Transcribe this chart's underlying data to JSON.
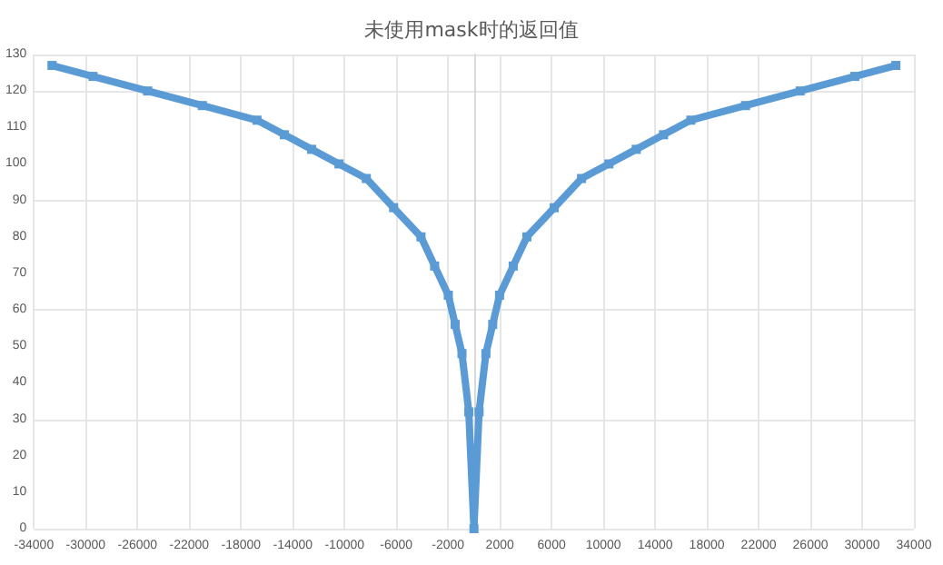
{
  "chart_data": {
    "type": "line",
    "title": "未使用mask时的返回值",
    "x": [
      -32604,
      -29436,
      -25212,
      -20988,
      -16764,
      -14652,
      -12540,
      -10428,
      -8316,
      -6204,
      -4092,
      -3036,
      -1980,
      -1452,
      -924,
      -396,
      0,
      396,
      924,
      1452,
      1980,
      3036,
      4092,
      6204,
      8316,
      10428,
      12540,
      14652,
      16764,
      20988,
      25212,
      29436,
      32604
    ],
    "series": [
      {
        "color": "#5b9bd5",
        "values": [
          127,
          124,
          120,
          116,
          112,
          108,
          104,
          100,
          96,
          88,
          80,
          72,
          64,
          56,
          48,
          32,
          0,
          32,
          48,
          56,
          64,
          72,
          80,
          88,
          96,
          100,
          104,
          108,
          112,
          116,
          120,
          124,
          127
        ]
      }
    ],
    "xlim": [
      -34000,
      34000
    ],
    "xticks": [
      -34000,
      -30000,
      -26000,
      -22000,
      -18000,
      -14000,
      -10000,
      -6000,
      -2000,
      2000,
      6000,
      10000,
      14000,
      18000,
      22000,
      26000,
      30000,
      34000
    ],
    "ylim": [
      0,
      130
    ],
    "yticks": [
      0,
      10,
      20,
      30,
      40,
      50,
      60,
      70,
      80,
      90,
      100,
      110,
      120,
      130
    ],
    "grid": true,
    "marker": "square",
    "line_style": "solid"
  }
}
